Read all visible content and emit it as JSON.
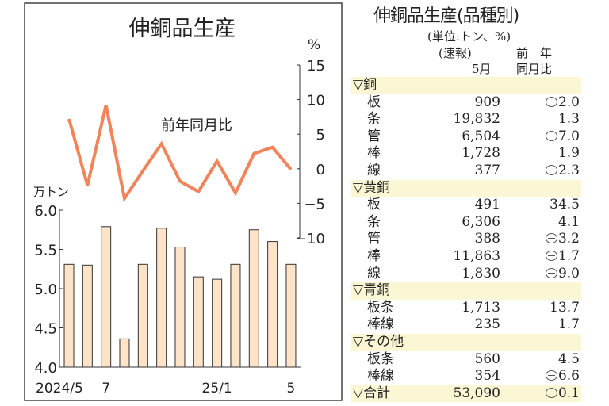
{
  "chart_data": {
    "type": "bar+line",
    "title": "伸銅品生産",
    "categories": [
      "2024/5",
      "6",
      "7",
      "8",
      "9",
      "10",
      "11",
      "12",
      "25/1",
      "2",
      "3",
      "4",
      "5"
    ],
    "x_tick_labels": [
      {
        "index": 0,
        "label": "2024/5"
      },
      {
        "index": 2,
        "label": "7"
      },
      {
        "index": 8,
        "label": "25/1"
      },
      {
        "index": 12,
        "label": "5"
      }
    ],
    "bar_series": {
      "unit": "万トン",
      "values": [
        5.31,
        5.3,
        5.79,
        4.36,
        5.31,
        5.77,
        5.53,
        5.15,
        5.12,
        5.31,
        5.75,
        5.6,
        5.31
      ],
      "ylim": [
        4.0,
        6.0
      ],
      "ticks": [
        "6.0",
        "5.5",
        "5.0",
        "4.5",
        "4.0"
      ],
      "color": "#fde3c8"
    },
    "line_series": {
      "name": "前年同月比",
      "unit": "%",
      "values": [
        7.2,
        -2.4,
        9.2,
        -4.3,
        -0.3,
        3.6,
        -1.8,
        -3.3,
        1.1,
        -3.5,
        2.2,
        3.1,
        -0.1
      ],
      "ylim": [
        -10,
        15
      ],
      "ticks": [
        "15",
        "10",
        "5",
        "0",
        "−5",
        "−10"
      ],
      "color": "#f0845a"
    },
    "grid": false
  },
  "table": {
    "title": "伸銅品生産(品種別)",
    "unit": "(単位:トン、%)",
    "col1": [
      "(速報)",
      "5月"
    ],
    "col2": [
      "前　年",
      "同月比"
    ],
    "rows": [
      {
        "section": "▽銅"
      },
      {
        "name": "板",
        "value": "909",
        "change": "2.0",
        "negative": true
      },
      {
        "name": "条",
        "value": "19,832",
        "change": "1.3",
        "negative": false
      },
      {
        "name": "管",
        "value": "6,504",
        "change": "7.0",
        "negative": true
      },
      {
        "name": "棒",
        "value": "1,728",
        "change": "1.9",
        "negative": false
      },
      {
        "name": "線",
        "value": "377",
        "change": "2.3",
        "negative": true
      },
      {
        "section": "▽黄銅"
      },
      {
        "name": "板",
        "value": "491",
        "change": "34.5",
        "negative": false
      },
      {
        "name": "条",
        "value": "6,306",
        "change": "4.1",
        "negative": false
      },
      {
        "name": "管",
        "value": "388",
        "change": "3.2",
        "negative": true
      },
      {
        "name": "棒",
        "value": "11,863",
        "change": "1.7",
        "negative": true
      },
      {
        "name": "線",
        "value": "1,830",
        "change": "9.0",
        "negative": true
      },
      {
        "section": "▽青銅"
      },
      {
        "name": "板条",
        "value": "1,713",
        "change": "13.7",
        "negative": false
      },
      {
        "name": "棒線",
        "value": "235",
        "change": "1.7",
        "negative": false
      },
      {
        "section": "▽その他"
      },
      {
        "name": "板条",
        "value": "560",
        "change": "4.5",
        "negative": false
      },
      {
        "name": "棒線",
        "value": "354",
        "change": "6.6",
        "negative": true
      },
      {
        "section": "▽合計",
        "value": "53,090",
        "change": "0.1",
        "negative": true
      }
    ]
  }
}
